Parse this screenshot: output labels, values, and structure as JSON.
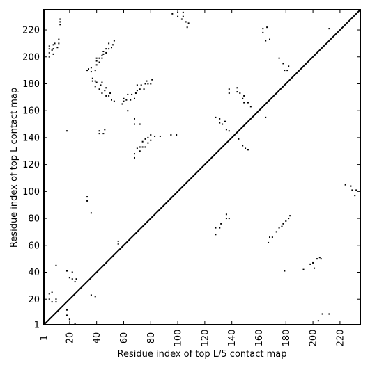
{
  "chart_data": {
    "type": "scatter",
    "x_label": "Residue index of top L/5 contact map",
    "y_label": "Residue index of top L contact map",
    "color": "#000000",
    "xlim": [
      1,
      235
    ],
    "ylim": [
      1,
      235
    ],
    "xticks": [
      1,
      20,
      40,
      60,
      80,
      100,
      120,
      140,
      160,
      180,
      200,
      220
    ],
    "yticks": [
      1,
      20,
      40,
      60,
      80,
      100,
      120,
      140,
      160,
      180,
      200,
      220
    ],
    "x": [
      5,
      5,
      5,
      5,
      7,
      8,
      8,
      8,
      9,
      11,
      12,
      12,
      13,
      13,
      13,
      33,
      34,
      36,
      36,
      37,
      37,
      39,
      39,
      40,
      40,
      40,
      42,
      42,
      44,
      44,
      45,
      45,
      47,
      47,
      49,
      49,
      51,
      52,
      53,
      39,
      40,
      42,
      43,
      44,
      44,
      46,
      47,
      47,
      49,
      50,
      51,
      53,
      59,
      60,
      60,
      62,
      63,
      65,
      66,
      68,
      69,
      70,
      70,
      72,
      73,
      75,
      76,
      77,
      78,
      80,
      81,
      42,
      42,
      45,
      46,
      18,
      63,
      68,
      68,
      72,
      68,
      68,
      70,
      72,
      72,
      74,
      74,
      76,
      76,
      78,
      78,
      80,
      80,
      83,
      87,
      95,
      99,
      56,
      56,
      33,
      33,
      36,
      10,
      18,
      20,
      22,
      22,
      24,
      25,
      10,
      10,
      5,
      5,
      7,
      7,
      18,
      18,
      20,
      24,
      36,
      39,
      96,
      100,
      100,
      103,
      104,
      104,
      106,
      107,
      108,
      128,
      131,
      131,
      133,
      135,
      136,
      138,
      138,
      138,
      144,
      144,
      146,
      148,
      149,
      149,
      152,
      154,
      145,
      148,
      150,
      152,
      163,
      163,
      165,
      166,
      168,
      175,
      178,
      179,
      181,
      182,
      212,
      165,
      128,
      128,
      131,
      132,
      136,
      136,
      138,
      167,
      168,
      170,
      173,
      175,
      177,
      178,
      180,
      182,
      183,
      179,
      193,
      198,
      200,
      201,
      203,
      206,
      205,
      204,
      207,
      212,
      224,
      228,
      229,
      231,
      232
    ],
    "values": [
      200,
      203,
      206,
      208,
      205,
      202,
      206,
      209,
      210,
      207,
      210,
      213,
      224,
      226,
      228,
      190,
      191,
      189,
      192,
      184,
      182,
      182,
      190,
      194,
      197,
      199,
      196,
      199,
      199,
      201,
      202,
      204,
      203,
      206,
      206,
      210,
      207,
      209,
      212,
      178,
      181,
      176,
      179,
      181,
      173,
      175,
      177,
      171,
      171,
      173,
      168,
      167,
      165,
      167,
      169,
      168,
      172,
      168,
      172,
      169,
      173,
      175,
      179,
      176,
      179,
      176,
      180,
      182,
      180,
      180,
      183,
      145,
      143,
      143,
      146,
      145,
      160,
      150,
      154,
      150,
      125,
      128,
      132,
      133,
      130,
      133,
      137,
      133,
      139,
      136,
      140,
      138,
      142,
      141,
      141,
      142,
      142,
      61,
      63,
      93,
      96,
      84,
      45,
      41,
      36,
      40,
      35,
      33,
      35,
      18,
      20,
      24,
      20,
      18,
      25,
      8,
      12,
      5,
      2,
      23,
      22,
      232,
      230,
      233,
      228,
      230,
      233,
      226,
      222,
      225,
      155,
      151,
      154,
      150,
      152,
      146,
      145,
      173,
      176,
      174,
      177,
      173,
      169,
      171,
      166,
      166,
      163,
      139,
      134,
      132,
      131,
      218,
      221,
      212,
      222,
      213,
      199,
      195,
      190,
      190,
      193,
      221,
      155,
      68,
      73,
      73,
      76,
      80,
      83,
      80,
      62,
      66,
      66,
      70,
      73,
      74,
      76,
      78,
      80,
      82,
      41,
      42,
      46,
      47,
      43,
      50,
      50,
      51,
      4,
      9,
      9,
      105,
      104,
      101,
      97,
      101
    ]
  }
}
